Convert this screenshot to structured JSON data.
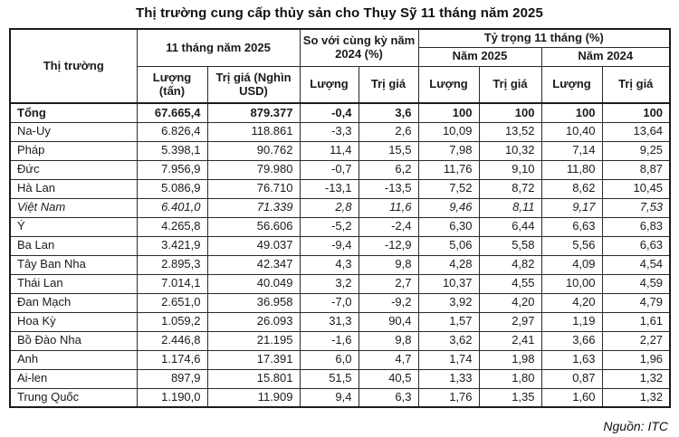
{
  "title": "Thị trường cung cấp thủy sản cho Thụy Sỹ  11 tháng năm 2025",
  "source": "Nguồn: ITC",
  "table": {
    "header": {
      "market": "Thị trường",
      "group_period": "11 tháng năm 2025",
      "group_yoy": "So với cùng kỳ năm 2024 (%)",
      "group_share": "Tỷ trọng 11 tháng (%)",
      "year_2025": "Năm 2025",
      "year_2024": "Năm 2024",
      "volume_ton": "Lượng (tấn)",
      "value_usd": "Trị giá (Nghìn USD)",
      "volume": "Lượng",
      "value": "Trị giá"
    },
    "rows": [
      {
        "market": "Tổng",
        "style": "bold",
        "cells": [
          "67.665,4",
          "879.377",
          "-0,4",
          "3,6",
          "100",
          "100",
          "100",
          "100"
        ]
      },
      {
        "market": "Na-Uy",
        "style": "",
        "cells": [
          "6.826,4",
          "118.861",
          "-3,3",
          "2,6",
          "10,09",
          "13,52",
          "10,40",
          "13,64"
        ]
      },
      {
        "market": "Pháp",
        "style": "",
        "cells": [
          "5.398,1",
          "90.762",
          "11,4",
          "15,5",
          "7,98",
          "10,32",
          "7,14",
          "9,25"
        ]
      },
      {
        "market": "Đức",
        "style": "",
        "cells": [
          "7.956,9",
          "79.980",
          "-0,7",
          "6,2",
          "11,76",
          "9,10",
          "11,80",
          "8,87"
        ]
      },
      {
        "market": "Hà Lan",
        "style": "",
        "cells": [
          "5.086,9",
          "76.710",
          "-13,1",
          "-13,5",
          "7,52",
          "8,72",
          "8,62",
          "10,45"
        ]
      },
      {
        "market": "Việt Nam",
        "style": "italic",
        "cells": [
          "6.401,0",
          "71.339",
          "2,8",
          "11,6",
          "9,46",
          "8,11",
          "9,17",
          "7,53"
        ]
      },
      {
        "market": "Ý",
        "style": "",
        "cells": [
          "4.265,8",
          "56.606",
          "-5,2",
          "-2,4",
          "6,30",
          "6,44",
          "6,63",
          "6,83"
        ]
      },
      {
        "market": "Ba Lan",
        "style": "",
        "cells": [
          "3.421,9",
          "49.037",
          "-9,4",
          "-12,9",
          "5,06",
          "5,58",
          "5,56",
          "6,63"
        ]
      },
      {
        "market": "Tây Ban Nha",
        "style": "",
        "cells": [
          "2.895,3",
          "42.347",
          "4,3",
          "9,8",
          "4,28",
          "4,82",
          "4,09",
          "4,54"
        ]
      },
      {
        "market": "Thái Lan",
        "style": "",
        "cells": [
          "7.014,1",
          "40.049",
          "3,2",
          "2,7",
          "10,37",
          "4,55",
          "10,00",
          "4,59"
        ]
      },
      {
        "market": "Đan Mạch",
        "style": "",
        "cells": [
          "2.651,0",
          "36.958",
          "-7,0",
          "-9,2",
          "3,92",
          "4,20",
          "4,20",
          "4,79"
        ]
      },
      {
        "market": "Hoa Kỳ",
        "style": "",
        "cells": [
          "1.059,2",
          "26.093",
          "31,3",
          "90,4",
          "1,57",
          "2,97",
          "1,19",
          "1,61"
        ]
      },
      {
        "market": "Bồ Đào Nha",
        "style": "",
        "cells": [
          "2.446,8",
          "21.195",
          "-1,6",
          "9,8",
          "3,62",
          "2,41",
          "3,66",
          "2,27"
        ]
      },
      {
        "market": "Anh",
        "style": "",
        "cells": [
          "1.174,6",
          "17.391",
          "6,0",
          "4,7",
          "1,74",
          "1,98",
          "1,63",
          "1,96"
        ]
      },
      {
        "market": "Ai-len",
        "style": "",
        "cells": [
          "897,9",
          "15.801",
          "51,5",
          "40,5",
          "1,33",
          "1,80",
          "0,87",
          "1,32"
        ]
      },
      {
        "market": "Trung Quốc",
        "style": "",
        "cells": [
          "1.190,0",
          "11.909",
          "9,4",
          "6,3",
          "1,76",
          "1,35",
          "1,60",
          "1,32"
        ]
      }
    ]
  }
}
